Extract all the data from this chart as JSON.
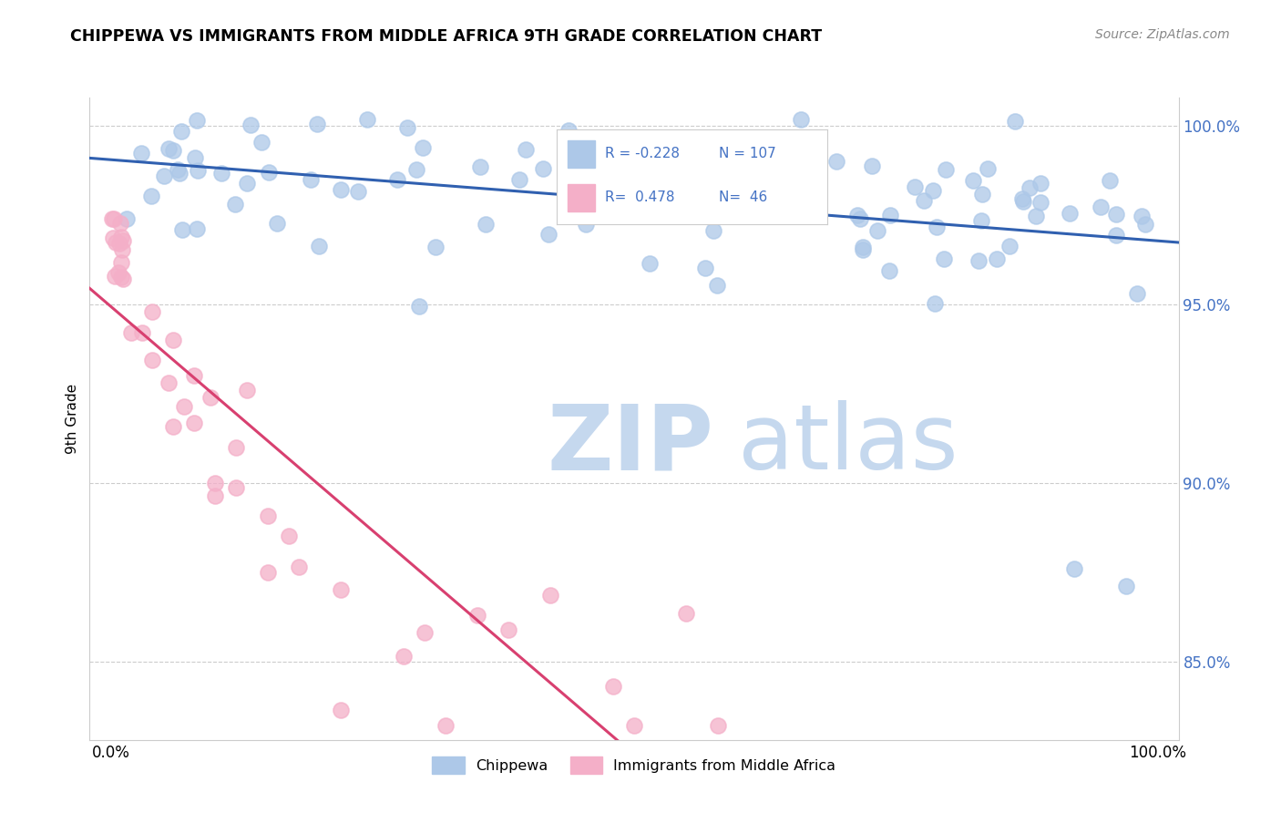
{
  "title": "CHIPPEWA VS IMMIGRANTS FROM MIDDLE AFRICA 9TH GRADE CORRELATION CHART",
  "source": "Source: ZipAtlas.com",
  "ylabel": "9th Grade",
  "ylim": [
    0.828,
    1.008
  ],
  "xlim": [
    -0.02,
    1.02
  ],
  "yticks": [
    0.85,
    0.9,
    0.95,
    1.0
  ],
  "ytick_labels": [
    "85.0%",
    "90.0%",
    "95.0%",
    "100.0%"
  ],
  "blue_R": -0.228,
  "blue_N": 107,
  "pink_R": 0.478,
  "pink_N": 46,
  "blue_color": "#adc8e8",
  "blue_edge_color": "#adc8e8",
  "blue_line_color": "#3060b0",
  "pink_color": "#f4afc8",
  "pink_edge_color": "#f4afc8",
  "pink_line_color": "#d84070",
  "tick_color": "#4472c4",
  "blue_label": "Chippewa",
  "pink_label": "Immigrants from Middle Africa",
  "watermark_zip": "ZIP",
  "watermark_atlas": "atlas",
  "watermark_color": "#c5d8ee",
  "grid_color": "#cccccc",
  "legend_border_color": "#cccccc"
}
